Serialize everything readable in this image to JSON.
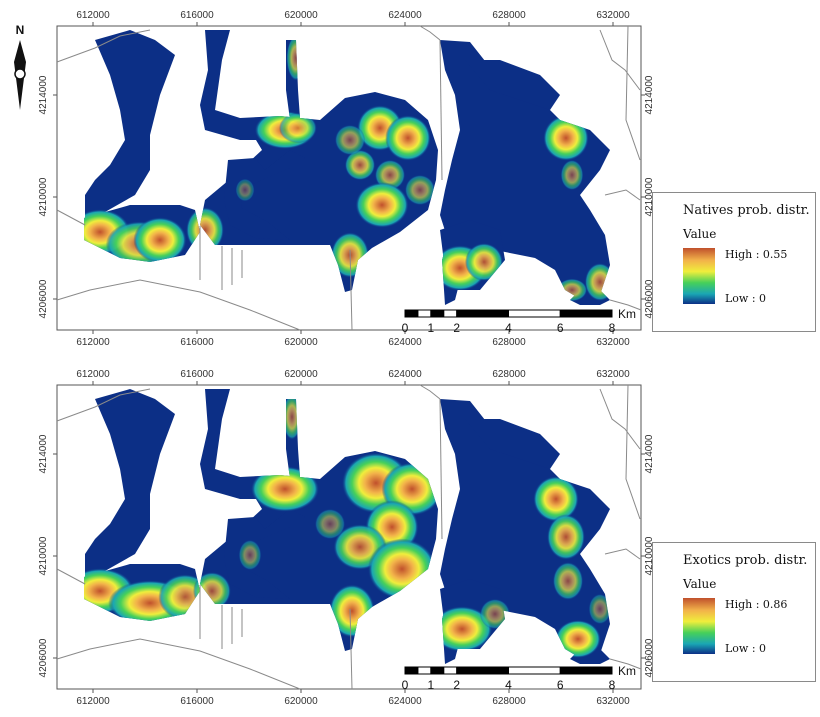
{
  "map": {
    "x_ticks": [
      "612000",
      "616000",
      "620000",
      "624000",
      "628000",
      "632000"
    ],
    "y_ticks": [
      "4214000",
      "4210000",
      "4206000"
    ],
    "north_label": "N",
    "scale_bar": {
      "labels": [
        "0",
        "1",
        "2",
        "4",
        "6",
        "8"
      ],
      "unit": "Km"
    },
    "colors": {
      "water": "#0c2f86",
      "low": "#1aa6b4",
      "mid": "#46d05a",
      "yellow": "#f0ee3c",
      "high": "#c0502c",
      "shoreline": "#8a8a8a"
    }
  },
  "panels": [
    {
      "legend": {
        "title": "Natives prob. distr.",
        "subtitle": "Value",
        "high_label": "High : 0.55",
        "low_label": "Low : 0"
      }
    },
    {
      "legend": {
        "title": "Exotics prob. distr.",
        "subtitle": "Value",
        "high_label": "High : 0.86",
        "low_label": "Low : 0"
      }
    }
  ]
}
